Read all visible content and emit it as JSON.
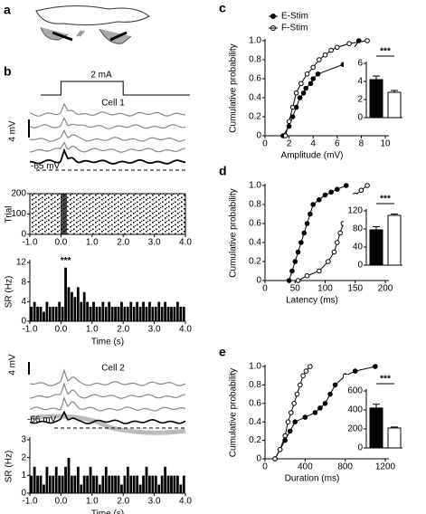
{
  "panel_labels": [
    "a",
    "b",
    "c",
    "d",
    "e"
  ],
  "chart_data": [
    {
      "type": "raster",
      "title": "Cell 1",
      "stimulus_label": "2 mA",
      "scale_label": "4 mV",
      "baseline_label": "-65 mV",
      "ylabel": "Trial",
      "xlim": [
        -1,
        4
      ],
      "xticks": [
        {
          "value": -1,
          "label": "-1.0"
        },
        {
          "value": 0,
          "label": "0.0"
        },
        {
          "value": 1,
          "label": "1.0"
        },
        {
          "value": 2,
          "label": "2.0"
        },
        {
          "value": 3,
          "label": "3.0"
        },
        {
          "value": 4,
          "label": "4.0"
        }
      ],
      "ylim": [
        0,
        200
      ],
      "yticks": [
        0,
        100,
        200
      ]
    },
    {
      "type": "histogram",
      "ylabel": "SR (Hz)",
      "xlabel": "Time (s)",
      "annotation": "***",
      "color": "#000000",
      "bins": [
        -1,
        -0.9,
        -0.8,
        -0.7,
        -0.6,
        -0.5,
        -0.4,
        -0.3,
        -0.2,
        -0.1,
        0,
        0.1,
        0.2,
        0.3,
        0.4,
        0.5,
        0.6,
        0.7,
        0.8,
        0.9,
        1,
        1.1,
        1.2,
        1.3,
        1.4,
        1.5,
        1.6,
        1.7,
        1.8,
        1.9,
        2,
        2.1,
        2.2,
        2.3,
        2.4,
        2.5,
        2.6,
        2.7,
        2.8,
        2.9,
        3,
        3.1,
        3.2,
        3.3,
        3.4,
        3.5,
        3.6,
        3.7,
        3.8,
        3.9,
        4
      ],
      "values": [
        3,
        4,
        3,
        3,
        2,
        4,
        3,
        3,
        3,
        4,
        3,
        11,
        7,
        6,
        5,
        7,
        4,
        6,
        4,
        3,
        4,
        3,
        3,
        4,
        3,
        4,
        3,
        3,
        3,
        4,
        3,
        3,
        4,
        3,
        4,
        3,
        4,
        3,
        4,
        3,
        3,
        4,
        3,
        4,
        3,
        3,
        3,
        4,
        3,
        3
      ],
      "xlim": [
        -1,
        4
      ],
      "xticks": [
        {
          "value": -1,
          "label": "-1.0"
        },
        {
          "value": 0,
          "label": "0.0"
        },
        {
          "value": 1,
          "label": "1.0"
        },
        {
          "value": 2,
          "label": "2.0"
        },
        {
          "value": 3,
          "label": "3.0"
        },
        {
          "value": 4,
          "label": "4.0"
        }
      ],
      "ylim": [
        0,
        12
      ],
      "yticks": [
        0,
        4,
        8,
        12
      ]
    },
    {
      "type": "trace",
      "title": "Cell 2",
      "scale_label": "4 mV",
      "baseline_label": "-66 mV"
    },
    {
      "type": "histogram",
      "ylabel": "SR (Hz)",
      "xlabel": "Time (s)",
      "color": "#000000",
      "bins": [
        -1,
        -0.9,
        -0.8,
        -0.7,
        -0.6,
        -0.5,
        -0.4,
        -0.3,
        -0.2,
        -0.1,
        0,
        0.1,
        0.2,
        0.3,
        0.4,
        0.5,
        0.6,
        0.7,
        0.8,
        0.9,
        1,
        1.1,
        1.2,
        1.3,
        1.4,
        1.5,
        1.6,
        1.7,
        1.8,
        1.9,
        2,
        2.1,
        2.2,
        2.3,
        2.4,
        2.5,
        2.6,
        2.7,
        2.8,
        2.9,
        3,
        3.1,
        3.2,
        3.3,
        3.4,
        3.5,
        3.6,
        3.7,
        3.8,
        3.9,
        4
      ],
      "values": [
        1,
        1.5,
        1,
        1,
        0.5,
        1.5,
        1,
        1,
        1.5,
        1,
        1,
        1.5,
        2,
        1,
        1,
        1.5,
        0.5,
        1,
        1,
        1.5,
        1,
        1,
        0.5,
        1,
        1.5,
        1,
        1,
        1,
        1,
        0.5,
        1,
        1.5,
        1,
        1,
        1,
        0.5,
        1,
        1.5,
        1,
        1,
        1,
        0.5,
        1,
        1.5,
        1,
        1,
        1,
        1,
        0.5,
        1
      ],
      "xlim": [
        -1,
        4
      ],
      "xticks": [
        {
          "value": -1,
          "label": "-1.0"
        },
        {
          "value": 0,
          "label": "0.0"
        },
        {
          "value": 1,
          "label": "1.0"
        },
        {
          "value": 2,
          "label": "2.0"
        },
        {
          "value": 3,
          "label": "3.0"
        },
        {
          "value": 4,
          "label": "4.0"
        }
      ],
      "ylim": [
        0,
        3
      ],
      "yticks": [
        0,
        1,
        2,
        3
      ]
    },
    {
      "type": "line",
      "xlabel": "Amplitude (mV)",
      "ylabel": "Cumulative probability",
      "legend": "top-left",
      "xlim": [
        0,
        10
      ],
      "xticks": [
        0,
        2,
        4,
        6,
        8,
        10
      ],
      "ylim": [
        0,
        1
      ],
      "yticks": [
        0,
        0.2,
        0.4,
        0.6,
        0.8,
        {
          "value": 1,
          "label": "1.0"
        }
      ],
      "series": [
        {
          "name": "E-Stim",
          "color": "#000000",
          "x": [
            1.5,
            2.0,
            2.3,
            2.6,
            2.9,
            3.2,
            3.4,
            3.8,
            4.0,
            4.4,
            6.5,
            7.8
          ],
          "values": [
            0,
            0.1,
            0.2,
            0.3,
            0.4,
            0.45,
            0.5,
            0.55,
            0.6,
            0.65,
            0.75,
            1.0
          ]
        },
        {
          "name": "F-Stim",
          "color": "#ffffff",
          "x": [
            1.7,
            2.0,
            2.3,
            2.6,
            3.0,
            3.5,
            4.0,
            4.5,
            5.0,
            5.5,
            6.0,
            7.0,
            8.5
          ],
          "values": [
            0,
            0.15,
            0.3,
            0.45,
            0.55,
            0.65,
            0.72,
            0.8,
            0.85,
            0.9,
            0.93,
            0.97,
            1.0
          ]
        }
      ],
      "inset": {
        "type": "bar",
        "values": [
          4.2,
          2.8
        ],
        "errors": [
          0.4,
          0.2
        ],
        "colors": [
          "#000000",
          "#ffffff"
        ],
        "ylim": [
          0,
          6
        ],
        "yticks": [
          0,
          2,
          4,
          6
        ],
        "annotation": "***"
      }
    },
    {
      "type": "line",
      "xlabel": "Latency (ms)",
      "ylabel": "Cumulative probability",
      "xlim": [
        0,
        200
      ],
      "xticks": [
        0,
        50,
        100,
        150,
        200
      ],
      "ylim": [
        0,
        1
      ],
      "yticks": [
        0,
        0.2,
        0.4,
        0.6,
        0.8,
        {
          "value": 1,
          "label": "1.0"
        }
      ],
      "series": [
        {
          "color": "#000000",
          "x": [
            40,
            45,
            50,
            55,
            60,
            65,
            70,
            75,
            80,
            90,
            100,
            110,
            120,
            135
          ],
          "values": [
            0,
            0.1,
            0.2,
            0.3,
            0.4,
            0.5,
            0.6,
            0.7,
            0.8,
            0.85,
            0.9,
            0.93,
            0.96,
            1.0
          ]
        },
        {
          "color": "#ffffff",
          "x": [
            55,
            70,
            90,
            105,
            115,
            120,
            125,
            130,
            135,
            140,
            145,
            150,
            160,
            170
          ],
          "values": [
            0,
            0.05,
            0.1,
            0.2,
            0.3,
            0.4,
            0.5,
            0.6,
            0.7,
            0.8,
            0.85,
            0.9,
            0.95,
            1.0
          ]
        }
      ],
      "inset": {
        "type": "bar",
        "values": [
          78,
          110
        ],
        "errors": [
          7,
          3
        ],
        "colors": [
          "#000000",
          "#ffffff"
        ],
        "ylim": [
          0,
          120
        ],
        "yticks": [
          0,
          40,
          80,
          120
        ],
        "annotation": "***"
      }
    },
    {
      "type": "line",
      "xlabel": "Duration (ms)",
      "ylabel": "Cumulative probability",
      "xlim": [
        0,
        1200
      ],
      "xticks": [
        0,
        400,
        800,
        1200
      ],
      "ylim": [
        0,
        1
      ],
      "yticks": [
        0,
        0.2,
        0.4,
        0.6,
        0.8,
        {
          "value": 1,
          "label": "1.0"
        }
      ],
      "series": [
        {
          "color": "#000000",
          "x": [
            100,
            150,
            200,
            250,
            300,
            400,
            500,
            550,
            600,
            650,
            700,
            800,
            900,
            1100
          ],
          "values": [
            0,
            0.1,
            0.2,
            0.3,
            0.4,
            0.45,
            0.5,
            0.55,
            0.6,
            0.7,
            0.8,
            0.9,
            0.95,
            1.0
          ]
        },
        {
          "color": "#ffffff",
          "x": [
            100,
            150,
            200,
            230,
            260,
            290,
            320,
            350,
            380,
            410,
            450
          ],
          "values": [
            0,
            0.1,
            0.25,
            0.4,
            0.5,
            0.6,
            0.7,
            0.8,
            0.9,
            0.95,
            1.0
          ]
        }
      ],
      "inset": {
        "type": "bar",
        "values": [
          420,
          210
        ],
        "errors": [
          40,
          10
        ],
        "colors": [
          "#000000",
          "#ffffff"
        ],
        "ylim": [
          0,
          600
        ],
        "yticks": [
          0,
          200,
          400,
          600
        ],
        "annotation": "***"
      }
    }
  ]
}
